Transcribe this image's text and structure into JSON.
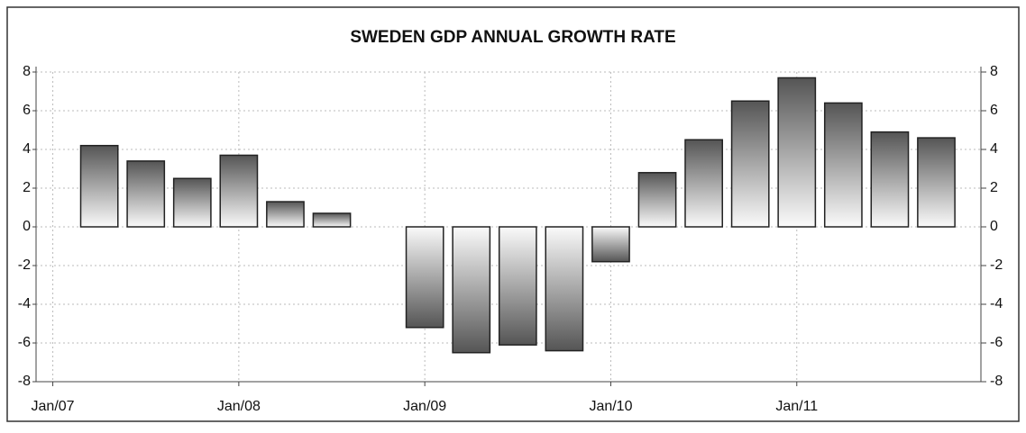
{
  "chart_data": {
    "type": "bar",
    "title": "SWEDEN GDP ANNUAL GROWTH RATE",
    "x": [
      2007.25,
      2007.5,
      2007.75,
      2008.0,
      2008.25,
      2008.5,
      2009.0,
      2009.25,
      2009.5,
      2009.75,
      2010.0,
      2010.25,
      2010.5,
      2010.75,
      2011.0,
      2011.25,
      2011.5,
      2011.75
    ],
    "values": [
      4.2,
      3.4,
      2.5,
      3.7,
      1.3,
      0.7,
      -5.2,
      -6.5,
      -6.1,
      -6.4,
      -1.8,
      2.8,
      4.5,
      6.5,
      7.7,
      6.4,
      4.9,
      4.6
    ],
    "color": "#555555",
    "xlim": [
      2006.91,
      2011.99
    ],
    "xticks": [
      {
        "value": 2007,
        "label": "Jan/07"
      },
      {
        "value": 2008,
        "label": "Jan/08"
      },
      {
        "value": 2009,
        "label": "Jan/09"
      },
      {
        "value": 2010,
        "label": "Jan/10"
      },
      {
        "value": 2011,
        "label": "Jan/11"
      }
    ],
    "ylim": [
      -8,
      8
    ],
    "yticks": [
      -8,
      -6,
      -4,
      -2,
      0,
      2,
      4,
      6,
      8
    ],
    "grid": true
  }
}
